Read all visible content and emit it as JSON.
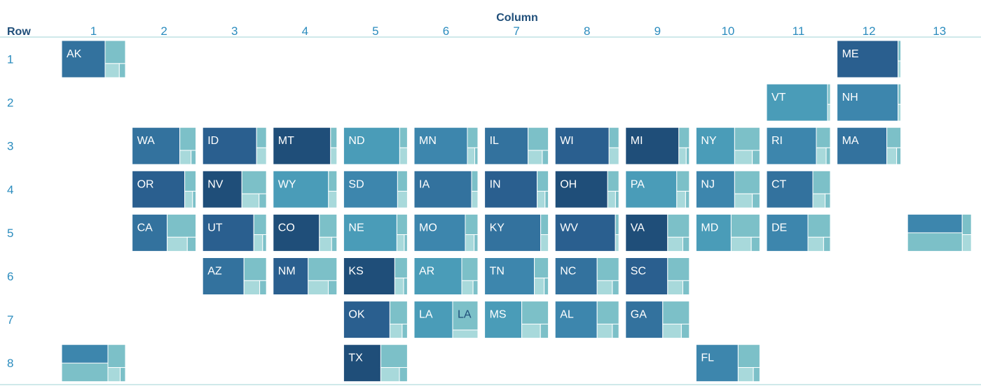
{
  "chart_data": {
    "type": "treemap-tile-grid",
    "top_label": "Column",
    "row_header": "Row",
    "columns": [
      "1",
      "2",
      "3",
      "4",
      "5",
      "6",
      "7",
      "8",
      "9",
      "10",
      "11",
      "12",
      "13"
    ],
    "rows": [
      "1",
      "2",
      "3",
      "4",
      "5",
      "6",
      "7",
      "8"
    ],
    "colors": {
      "darkest": "#1f4e79",
      "dark": "#2a5f8f",
      "mid": "#33729e",
      "medium": "#3d86ad",
      "light": "#4a9cb8",
      "pale": "#7cc0c8",
      "palest": "#a8d9db",
      "axis_text": "#2b8cbe",
      "title_text": "#1f4e79"
    },
    "cells": [
      {
        "label": "AK",
        "row": 1,
        "col": 1,
        "parts": [
          0.68,
          0.32
        ]
      },
      {
        "label": "ME",
        "row": 1,
        "col": 12,
        "parts": [
          0.96,
          0.04
        ]
      },
      {
        "label": "VT",
        "row": 2,
        "col": 11,
        "parts": [
          0.96,
          0.04
        ]
      },
      {
        "label": "NH",
        "row": 2,
        "col": 12,
        "parts": [
          0.96,
          0.04
        ]
      },
      {
        "label": "WA",
        "row": 3,
        "col": 2,
        "parts": [
          0.75,
          0.25
        ]
      },
      {
        "label": "ID",
        "row": 3,
        "col": 3,
        "parts": [
          0.85,
          0.15
        ]
      },
      {
        "label": "MT",
        "row": 3,
        "col": 4,
        "parts": [
          0.9,
          0.1
        ]
      },
      {
        "label": "ND",
        "row": 3,
        "col": 5,
        "parts": [
          0.88,
          0.12
        ]
      },
      {
        "label": "MN",
        "row": 3,
        "col": 6,
        "parts": [
          0.84,
          0.16
        ]
      },
      {
        "label": "IL",
        "row": 3,
        "col": 7,
        "parts": [
          0.68,
          0.32
        ]
      },
      {
        "label": "WI",
        "row": 3,
        "col": 8,
        "parts": [
          0.85,
          0.15
        ]
      },
      {
        "label": "MI",
        "row": 3,
        "col": 9,
        "parts": [
          0.84,
          0.16
        ]
      },
      {
        "label": "NY",
        "row": 3,
        "col": 10,
        "parts": [
          0.6,
          0.4
        ]
      },
      {
        "label": "RI",
        "row": 3,
        "col": 11,
        "parts": [
          0.78,
          0.22
        ]
      },
      {
        "label": "MA",
        "row": 3,
        "col": 12,
        "parts": [
          0.78,
          0.22
        ]
      },
      {
        "label": "OR",
        "row": 4,
        "col": 2,
        "parts": [
          0.82,
          0.18
        ]
      },
      {
        "label": "NV",
        "row": 4,
        "col": 3,
        "parts": [
          0.62,
          0.38
        ]
      },
      {
        "label": "WY",
        "row": 4,
        "col": 4,
        "parts": [
          0.87,
          0.13
        ]
      },
      {
        "label": "SD",
        "row": 4,
        "col": 5,
        "parts": [
          0.85,
          0.15
        ]
      },
      {
        "label": "IA",
        "row": 4,
        "col": 6,
        "parts": [
          0.9,
          0.1
        ]
      },
      {
        "label": "IN",
        "row": 4,
        "col": 7,
        "parts": [
          0.82,
          0.18
        ]
      },
      {
        "label": "OH",
        "row": 4,
        "col": 8,
        "parts": [
          0.82,
          0.18
        ]
      },
      {
        "label": "PA",
        "row": 4,
        "col": 9,
        "parts": [
          0.8,
          0.2
        ]
      },
      {
        "label": "NJ",
        "row": 4,
        "col": 10,
        "parts": [
          0.6,
          0.4
        ]
      },
      {
        "label": "CT",
        "row": 4,
        "col": 11,
        "parts": [
          0.72,
          0.28
        ]
      },
      {
        "label": "CA",
        "row": 5,
        "col": 2,
        "parts": [
          0.55,
          0.45
        ]
      },
      {
        "label": "UT",
        "row": 5,
        "col": 3,
        "parts": [
          0.8,
          0.2
        ]
      },
      {
        "label": "CO",
        "row": 5,
        "col": 4,
        "parts": [
          0.72,
          0.28
        ]
      },
      {
        "label": "NE",
        "row": 5,
        "col": 5,
        "parts": [
          0.84,
          0.16
        ]
      },
      {
        "label": "MO",
        "row": 5,
        "col": 6,
        "parts": [
          0.8,
          0.2
        ]
      },
      {
        "label": "KY",
        "row": 5,
        "col": 7,
        "parts": [
          0.88,
          0.12
        ]
      },
      {
        "label": "WV",
        "row": 5,
        "col": 8,
        "parts": [
          0.95,
          0.05
        ]
      },
      {
        "label": "VA",
        "row": 5,
        "col": 9,
        "parts": [
          0.66,
          0.34
        ]
      },
      {
        "label": "MD",
        "row": 5,
        "col": 10,
        "parts": [
          0.55,
          0.45
        ]
      },
      {
        "label": "DE",
        "row": 5,
        "col": 11,
        "parts": [
          0.65,
          0.35
        ]
      },
      {
        "label": "",
        "row": 5,
        "col": 13,
        "parts": [
          0.86,
          0.14
        ]
      },
      {
        "label": "AZ",
        "row": 6,
        "col": 3,
        "parts": [
          0.65,
          0.35
        ]
      },
      {
        "label": "NM",
        "row": 6,
        "col": 4,
        "parts": [
          0.55,
          0.45
        ]
      },
      {
        "label": "KS",
        "row": 6,
        "col": 5,
        "parts": [
          0.8,
          0.2
        ]
      },
      {
        "label": "AR",
        "row": 6,
        "col": 6,
        "parts": [
          0.75,
          0.25
        ]
      },
      {
        "label": "TN",
        "row": 6,
        "col": 7,
        "parts": [
          0.78,
          0.22
        ]
      },
      {
        "label": "NC",
        "row": 6,
        "col": 8,
        "parts": [
          0.66,
          0.34
        ]
      },
      {
        "label": "SC",
        "row": 6,
        "col": 9,
        "parts": [
          0.66,
          0.34
        ]
      },
      {
        "label": "OK",
        "row": 7,
        "col": 5,
        "parts": [
          0.72,
          0.28
        ]
      },
      {
        "label": "LA",
        "row": 7,
        "col": 6,
        "parts": [
          0.6,
          0.4
        ],
        "second_label": "LA"
      },
      {
        "label": "MS",
        "row": 7,
        "col": 7,
        "parts": [
          0.58,
          0.42
        ]
      },
      {
        "label": "AL",
        "row": 7,
        "col": 8,
        "parts": [
          0.66,
          0.34
        ]
      },
      {
        "label": "GA",
        "row": 7,
        "col": 9,
        "parts": [
          0.58,
          0.42
        ]
      },
      {
        "label": "",
        "row": 8,
        "col": 1,
        "parts": [
          0.72,
          0.28
        ]
      },
      {
        "label": "TX",
        "row": 8,
        "col": 5,
        "parts": [
          0.58,
          0.42
        ]
      },
      {
        "label": "FL",
        "row": 8,
        "col": 10,
        "parts": [
          0.66,
          0.34
        ]
      }
    ]
  }
}
